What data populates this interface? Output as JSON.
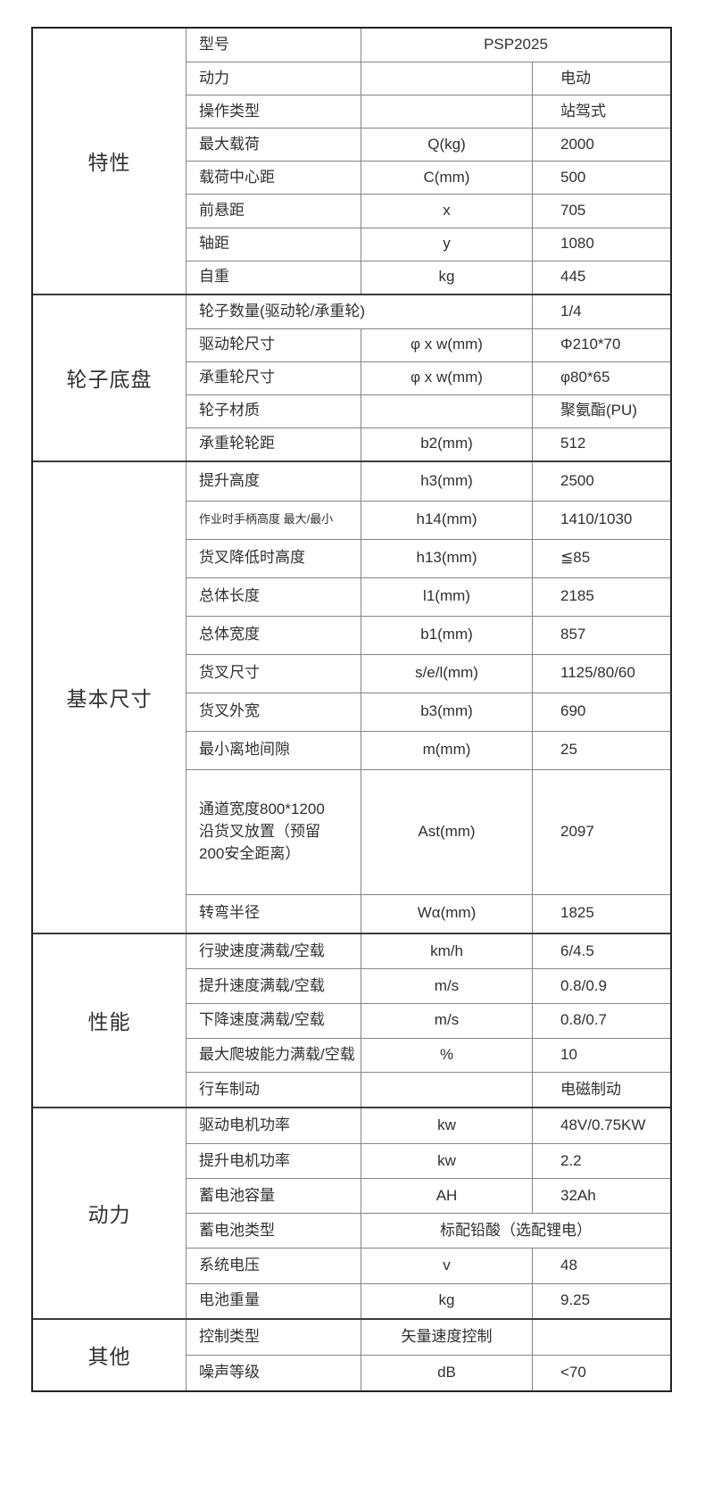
{
  "product": {
    "model_value": "PSP2025"
  },
  "sections": [
    {
      "category": "特性",
      "rows": [
        {
          "label": "型号",
          "merge": "symbol-value",
          "value": "PSP2025"
        },
        {
          "label": "动力",
          "symbol": "",
          "value": "电动"
        },
        {
          "label": "操作类型",
          "symbol": "",
          "value": "站驾式"
        },
        {
          "label": "最大载荷",
          "symbol": "Q(kg)",
          "value": "2000"
        },
        {
          "label": "载荷中心距",
          "symbol": "C(mm)",
          "value": "500"
        },
        {
          "label": "前悬距",
          "symbol": "x",
          "value": "705"
        },
        {
          "label": "轴距",
          "symbol": "y",
          "value": "1080"
        },
        {
          "label": "自重",
          "symbol": "kg",
          "value": "445"
        }
      ]
    },
    {
      "category": "轮子底盘",
      "rows": [
        {
          "label": "轮子数量(驱动轮/承重轮)",
          "merge": "label-symbol",
          "value": "1/4"
        },
        {
          "label": "驱动轮尺寸",
          "symbol": "φ x w(mm)",
          "value": "Φ210*70"
        },
        {
          "label": "承重轮尺寸",
          "symbol": "φ x w(mm)",
          "value": "φ80*65"
        },
        {
          "label": "轮子材质",
          "symbol": "",
          "value": "聚氨酯(PU)"
        },
        {
          "label": "承重轮轮距",
          "symbol": "b2(mm)",
          "value": "512"
        }
      ]
    },
    {
      "category": "基本尺寸",
      "rows": [
        {
          "label": "提升高度",
          "symbol": "h3(mm)",
          "value": "2500"
        },
        {
          "label": "作业时手柄高度  最大/最小",
          "small_label": true,
          "symbol": "h14(mm)",
          "value": "1410/1030"
        },
        {
          "label": "货叉降低时高度",
          "symbol": "h13(mm)",
          "value": "≦85"
        },
        {
          "label": "总体长度",
          "symbol": "l1(mm)",
          "value": "2185"
        },
        {
          "label": "总体宽度",
          "symbol": "b1(mm)",
          "value": "857"
        },
        {
          "label": "货叉尺寸",
          "symbol": "s/e/l(mm)",
          "value": "1125/80/60"
        },
        {
          "label": "货叉外宽",
          "symbol": "b3(mm)",
          "value": "690"
        },
        {
          "label": "最小离地间隙",
          "symbol": "m(mm)",
          "value": "25"
        },
        {
          "label": "通道宽度800*1200\n沿货叉放置（预留\n200安全距离）",
          "tall": true,
          "symbol": "Ast(mm)",
          "value": "2097"
        },
        {
          "label": "转弯半径",
          "symbol": "Wα(mm)",
          "value": "1825"
        }
      ]
    },
    {
      "category": "性能",
      "rows": [
        {
          "label": "行驶速度满载/空载",
          "symbol": "km/h",
          "value": "6/4.5"
        },
        {
          "label": "提升速度满载/空载",
          "symbol": "m/s",
          "value": "0.8/0.9"
        },
        {
          "label": "下降速度满载/空载",
          "symbol": "m/s",
          "value": "0.8/0.7"
        },
        {
          "label": "最大爬坡能力满载/空载",
          "symbol": "%",
          "value": "10"
        },
        {
          "label": "行车制动",
          "symbol": "",
          "value": "电磁制动"
        }
      ]
    },
    {
      "category": "动力",
      "rows": [
        {
          "label": "驱动电机功率",
          "symbol": "kw",
          "value": "48V/0.75KW"
        },
        {
          "label": "提升电机功率",
          "symbol": "kw",
          "value": "2.2"
        },
        {
          "label": "蓄电池容量",
          "symbol": "AH",
          "value": "32Ah"
        },
        {
          "label": "蓄电池类型",
          "merge": "symbol-value",
          "value": "标配铅酸（选配锂电）"
        },
        {
          "label": "系统电压",
          "symbol": "v",
          "value": "48"
        },
        {
          "label": "电池重量",
          "symbol": "kg",
          "value": "9.25"
        }
      ]
    },
    {
      "category": "其他",
      "rows": [
        {
          "label": "控制类型",
          "symbol": "矢量速度控制",
          "value": ""
        },
        {
          "label": "噪声等级",
          "symbol": "dB",
          "value": "<70"
        }
      ]
    }
  ]
}
